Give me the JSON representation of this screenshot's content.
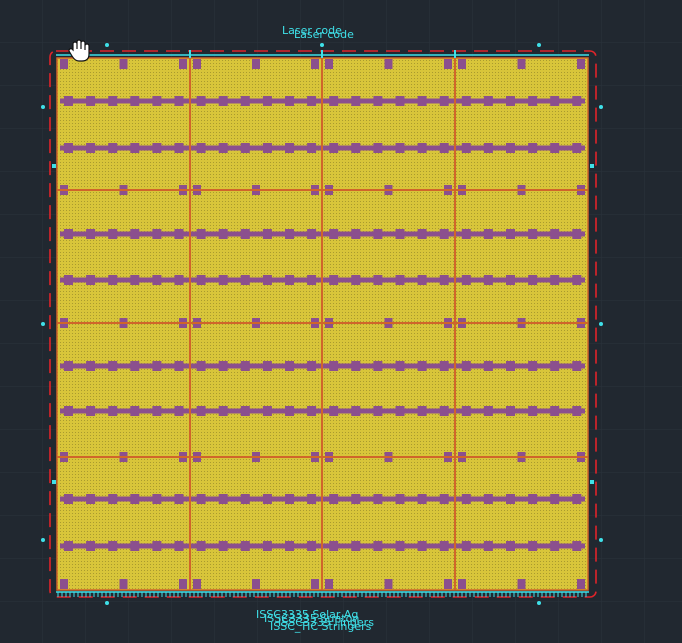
{
  "labels": {
    "top": [
      "Laser code",
      "Laser code"
    ],
    "bottom": [
      "ISSC3335 Solar Ag",
      "ISSC3335 Sunton",
      "ISSC_TIC Stringers",
      "ISSC3335 Fingers"
    ]
  }
}
